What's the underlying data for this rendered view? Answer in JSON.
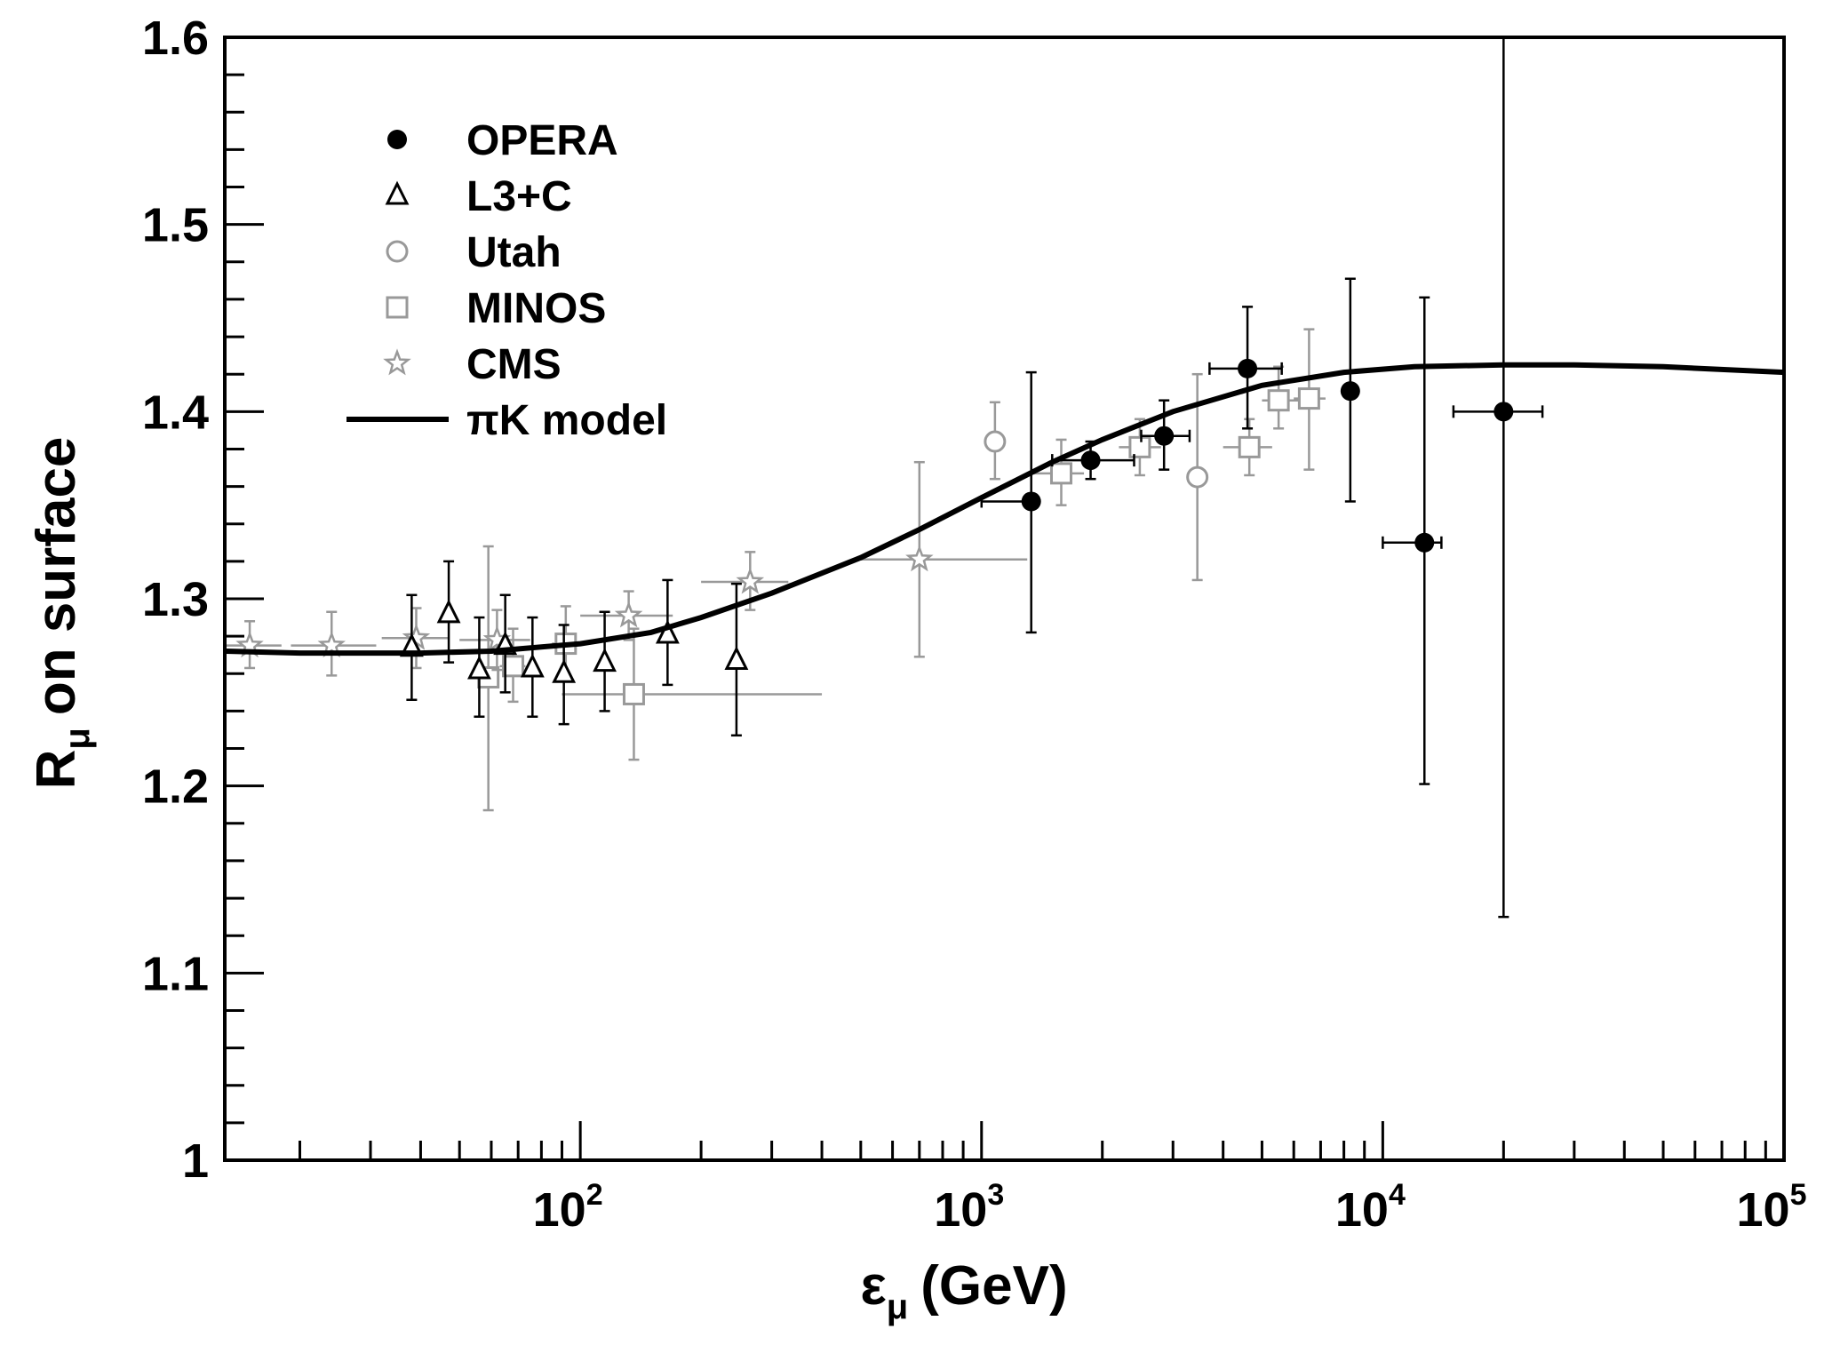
{
  "chart_data": {
    "type": "scatter",
    "title": "",
    "xlabel": {
      "main": "ε",
      "sub": "μ",
      "unit": "(GeV)"
    },
    "ylabel": {
      "main": "R",
      "sub": "μ",
      "rest": "on surface"
    },
    "xscale": "log",
    "xlim": [
      13,
      100000
    ],
    "ylim": [
      1.0,
      1.6
    ],
    "yticks": [
      "1",
      "1.1",
      "1.2",
      "1.3",
      "1.4",
      "1.5",
      "1.6"
    ],
    "xticks": [
      {
        "base": "10",
        "exp": "2",
        "value": 100
      },
      {
        "base": "10",
        "exp": "3",
        "value": 1000
      },
      {
        "base": "10",
        "exp": "4",
        "value": 10000
      },
      {
        "base": "10",
        "exp": "5",
        "value": 100000
      }
    ],
    "legend_position": "top-left",
    "series": [
      {
        "name": "OPERA",
        "marker": "filled-circle",
        "color": "#000000",
        "points": [
          {
            "x": 1330,
            "y": 1.352,
            "xlo": 1000,
            "xhi": 1330,
            "ylo": 1.282,
            "yhi": 1.421
          },
          {
            "x": 1870,
            "y": 1.374,
            "xlo": 1500,
            "xhi": 2400,
            "ylo": 1.364,
            "yhi": 1.384
          },
          {
            "x": 2850,
            "y": 1.387,
            "xlo": 2500,
            "xhi": 3300,
            "ylo": 1.369,
            "yhi": 1.406
          },
          {
            "x": 4600,
            "y": 1.423,
            "xlo": 3700,
            "xhi": 5600,
            "ylo": 1.391,
            "yhi": 1.456
          },
          {
            "x": 8300,
            "y": 1.411,
            "xlo": 8000,
            "xhi": 8600,
            "ylo": 1.352,
            "yhi": 1.471
          },
          {
            "x": 12700,
            "y": 1.33,
            "xlo": 10000,
            "xhi": 14000,
            "ylo": 1.201,
            "yhi": 1.461
          },
          {
            "x": 20000,
            "y": 1.4,
            "xlo": 15000,
            "xhi": 25000,
            "ylo": 1.13,
            "yhi": 1.6
          }
        ]
      },
      {
        "name": "L3+C",
        "marker": "open-triangle",
        "color": "#000000",
        "points": [
          {
            "x": 38,
            "y": 1.274,
            "ylo": 1.246,
            "yhi": 1.302
          },
          {
            "x": 47,
            "y": 1.292,
            "ylo": 1.266,
            "yhi": 1.32
          },
          {
            "x": 56,
            "y": 1.262,
            "ylo": 1.237,
            "yhi": 1.29
          },
          {
            "x": 65,
            "y": 1.275,
            "ylo": 1.25,
            "yhi": 1.302
          },
          {
            "x": 76,
            "y": 1.263,
            "ylo": 1.237,
            "yhi": 1.29
          },
          {
            "x": 91,
            "y": 1.26,
            "ylo": 1.233,
            "yhi": 1.286
          },
          {
            "x": 115,
            "y": 1.266,
            "ylo": 1.24,
            "yhi": 1.293
          },
          {
            "x": 165,
            "y": 1.281,
            "ylo": 1.254,
            "yhi": 1.31
          },
          {
            "x": 245,
            "y": 1.267,
            "ylo": 1.227,
            "yhi": 1.308
          }
        ]
      },
      {
        "name": "Utah",
        "marker": "open-circle",
        "color": "#999999",
        "points": [
          {
            "x": 1080,
            "y": 1.384,
            "ylo": 1.364,
            "yhi": 1.405
          },
          {
            "x": 3450,
            "y": 1.365,
            "ylo": 1.31,
            "yhi": 1.42
          }
        ]
      },
      {
        "name": "MINOS",
        "marker": "open-square",
        "color": "#999999",
        "points": [
          {
            "x": 59,
            "y": 1.258,
            "xlo": 56,
            "xhi": 62,
            "ylo": 1.187,
            "yhi": 1.328
          },
          {
            "x": 68,
            "y": 1.264,
            "xlo": 63,
            "xhi": 73,
            "ylo": 1.245,
            "yhi": 1.284
          },
          {
            "x": 92,
            "y": 1.276,
            "xlo": 85,
            "xhi": 100,
            "ylo": 1.257,
            "yhi": 1.296
          },
          {
            "x": 136,
            "y": 1.249,
            "xlo": 90,
            "xhi": 400,
            "ylo": 1.214,
            "yhi": 1.284
          },
          {
            "x": 1580,
            "y": 1.367,
            "xlo": 1350,
            "xhi": 1800,
            "ylo": 1.35,
            "yhi": 1.385
          },
          {
            "x": 2480,
            "y": 1.381,
            "xlo": 2200,
            "xhi": 2800,
            "ylo": 1.366,
            "yhi": 1.396
          },
          {
            "x": 4650,
            "y": 1.381,
            "xlo": 4000,
            "xhi": 5300,
            "ylo": 1.366,
            "yhi": 1.396
          },
          {
            "x": 5500,
            "y": 1.406,
            "xlo": 5000,
            "xhi": 6200,
            "ylo": 1.391,
            "yhi": 1.424
          },
          {
            "x": 6550,
            "y": 1.407,
            "xlo": 6000,
            "xhi": 7200,
            "ylo": 1.369,
            "yhi": 1.444
          }
        ]
      },
      {
        "name": "CMS",
        "marker": "open-star",
        "color": "#999999",
        "points": [
          {
            "x": 15,
            "y": 1.275,
            "xlo": 13,
            "xhi": 18,
            "ylo": 1.263,
            "yhi": 1.288
          },
          {
            "x": 24,
            "y": 1.275,
            "xlo": 19,
            "xhi": 31,
            "ylo": 1.259,
            "yhi": 1.293
          },
          {
            "x": 39,
            "y": 1.279,
            "xlo": 32,
            "xhi": 47,
            "ylo": 1.263,
            "yhi": 1.295
          },
          {
            "x": 62,
            "y": 1.278,
            "xlo": 50,
            "xhi": 75,
            "ylo": 1.262,
            "yhi": 1.294
          },
          {
            "x": 132,
            "y": 1.291,
            "xlo": 100,
            "xhi": 170,
            "ylo": 1.278,
            "yhi": 1.304
          },
          {
            "x": 265,
            "y": 1.309,
            "xlo": 200,
            "xhi": 330,
            "ylo": 1.294,
            "yhi": 1.325
          },
          {
            "x": 700,
            "y": 1.321,
            "xlo": 480,
            "xhi": 1300,
            "ylo": 1.269,
            "yhi": 1.373
          }
        ]
      },
      {
        "name": "πK model",
        "marker": "line",
        "color": "#000000",
        "curve": [
          [
            13,
            1.272
          ],
          [
            20,
            1.271
          ],
          [
            40,
            1.271
          ],
          [
            60,
            1.272
          ],
          [
            100,
            1.276
          ],
          [
            150,
            1.282
          ],
          [
            200,
            1.29
          ],
          [
            300,
            1.303
          ],
          [
            500,
            1.322
          ],
          [
            700,
            1.337
          ],
          [
            1000,
            1.354
          ],
          [
            1500,
            1.373
          ],
          [
            2000,
            1.385
          ],
          [
            3000,
            1.4
          ],
          [
            5000,
            1.414
          ],
          [
            8000,
            1.421
          ],
          [
            12000,
            1.424
          ],
          [
            20000,
            1.425
          ],
          [
            30000,
            1.425
          ],
          [
            50000,
            1.424
          ],
          [
            100000,
            1.421
          ]
        ]
      }
    ]
  }
}
